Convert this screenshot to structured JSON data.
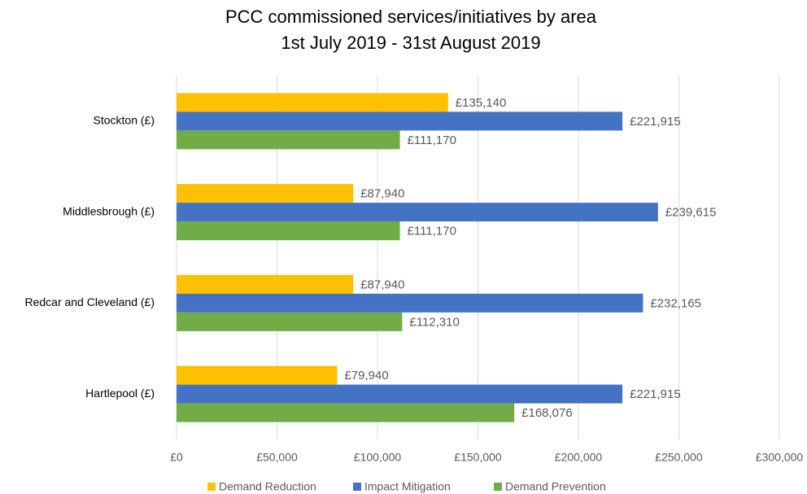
{
  "chart_data": {
    "type": "hbar",
    "title": [
      "PCC commissioned services/initiatives by area",
      "1st July 2019 - 31st August 2019"
    ],
    "categories": [
      "Stockton (£)",
      "Middlesbrough (£)",
      "Redcar and Cleveland (£)",
      "Hartlepool (£)"
    ],
    "series": [
      {
        "name": "Demand Reduction",
        "color": "#ffc000",
        "values": [
          135140,
          87940,
          87940,
          79940
        ],
        "value_labels": [
          "£135,140",
          "£87,940",
          "£87,940",
          "£79,940"
        ]
      },
      {
        "name": "Impact Mitigation",
        "color": "#4472c4",
        "values": [
          221915,
          239615,
          232165,
          221915
        ],
        "value_labels": [
          "£221,915",
          "£239,615",
          "£232,165",
          "£221,915"
        ]
      },
      {
        "name": "Demand Prevention",
        "color": "#70ad47",
        "values": [
          111170,
          111170,
          112310,
          168076
        ],
        "value_labels": [
          "£111,170",
          "£111,170",
          "£112,310",
          "£168,076"
        ]
      }
    ],
    "xlim": [
      0,
      300000
    ],
    "xticks": [
      {
        "value": 0,
        "label": "£0"
      },
      {
        "value": 50000,
        "label": "£50,000"
      },
      {
        "value": 100000,
        "label": "£100,000"
      },
      {
        "value": 150000,
        "label": "£150,000"
      },
      {
        "value": 200000,
        "label": "£200,000"
      },
      {
        "value": 250000,
        "label": "£250,000"
      },
      {
        "value": 300000,
        "label": "£300,000"
      }
    ],
    "grid": true,
    "legend": "bottom"
  }
}
